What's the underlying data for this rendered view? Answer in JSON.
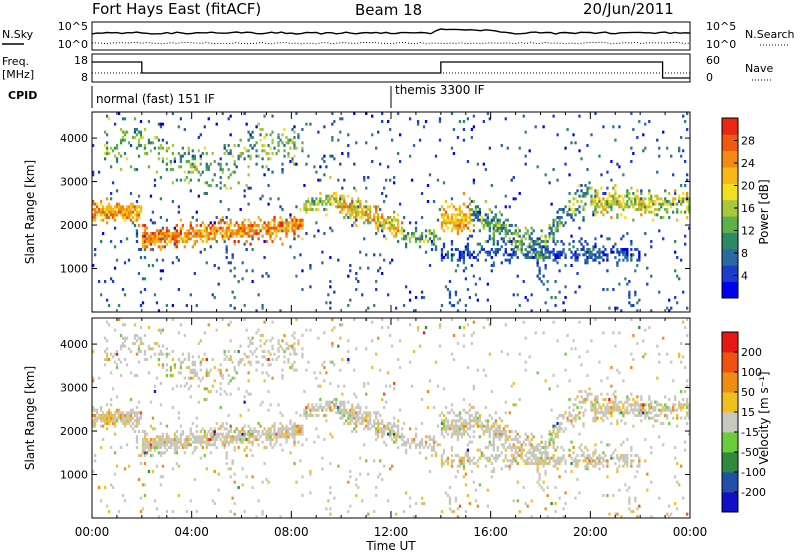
{
  "header": {
    "title": "Fort Hays East (fitACF)",
    "beam": "Beam 18",
    "date": "20/Jun/2011"
  },
  "status_panels": {
    "nsky_label": "N.Sky",
    "nsearch_label": "N.Search",
    "noise_ticks": [
      "10^5",
      "10^0"
    ],
    "freq_label": "Freq.",
    "freq_unit": "[MHz]",
    "freq_ticks": [
      "18",
      "8"
    ],
    "nave_label": "Nave",
    "nave_ticks": [
      "60",
      "0"
    ],
    "cpid_label": "CPID",
    "cpid_modes": [
      {
        "name": "normal (fast) 151 IF",
        "start_hour": 0
      },
      {
        "name": "themis 3300 IF",
        "start_hour": 12
      }
    ]
  },
  "chart_data": [
    {
      "type": "heatmap",
      "ylabel": "Slant Range [km]",
      "ylim": [
        0,
        4600
      ],
      "yticks": [
        "1000",
        "2000",
        "3000",
        "4000"
      ],
      "xlabel": "Time UT",
      "xticks": [
        "00:00",
        "04:00",
        "08:00",
        "12:00",
        "16:00",
        "20:00",
        "00:00"
      ],
      "xlim_hours": [
        0,
        24
      ],
      "colorbar": {
        "label": "Power [dB]",
        "ticks": [
          "4",
          "8",
          "12",
          "16",
          "20",
          "24",
          "28"
        ],
        "colors": [
          "#0000ee",
          "#1a3cc8",
          "#2a6aa0",
          "#2e8a64",
          "#5fb04a",
          "#a8c83c",
          "#f0e020",
          "#f7b818",
          "#f08c14",
          "#f05a10",
          "#e82810"
        ]
      }
    },
    {
      "type": "heatmap",
      "ylabel": "Slant Range [km]",
      "ylim": [
        0,
        4600
      ],
      "yticks": [
        "1000",
        "2000",
        "3000",
        "4000"
      ],
      "xlabel": "Time UT",
      "xticks": [
        "00:00",
        "04:00",
        "08:00",
        "12:00",
        "16:00",
        "20:00",
        "00:00"
      ],
      "xlim_hours": [
        0,
        24
      ],
      "colorbar": {
        "label": "Velocity [m s⁻¹]",
        "ticks": [
          "200",
          "100",
          "50",
          "15",
          "-15",
          "-50",
          "-100",
          "-200"
        ],
        "colors": [
          "#1010c8",
          "#2050a8",
          "#2f8a3c",
          "#6ccd3c",
          "#c8c8c0",
          "#f0c020",
          "#f08c14",
          "#f05010",
          "#e81818"
        ]
      }
    }
  ]
}
